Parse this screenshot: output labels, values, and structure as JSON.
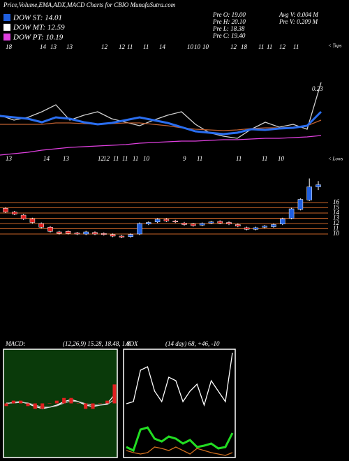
{
  "header": {
    "title": "Price,Volume,EMA,ADX,MACD Charts for CBIO MunafaSutra.com",
    "legend": [
      {
        "name": "DOW ST: 14.01",
        "color": "#1f5fe0"
      },
      {
        "name": "DOW MT: 12.59",
        "color": "#ffffff"
      },
      {
        "name": "DOW PT: 10.19",
        "color": "#e040e0"
      }
    ],
    "info": [
      "Pre  O: 19.00",
      "Pre  H: 20.10",
      "Pre  L: 18.38",
      "Pre  C: 19.40"
    ],
    "volume": [
      "Avg  V: 0.004  M",
      "Pre  V: 0.209  M"
    ]
  },
  "chart_data": [
    {
      "type": "line",
      "top_labels": [
        "18",
        "14",
        "13",
        "13",
        "12",
        "12",
        "11",
        "11",
        "14",
        "10",
        "10",
        "10",
        "12",
        "18",
        "11",
        "11",
        "12",
        "11"
      ],
      "bottom_labels": [
        "13",
        "14",
        "13",
        "12",
        "12",
        "11",
        "11",
        "11",
        "10",
        "9",
        "11",
        "11",
        "11",
        "10"
      ],
      "annotations": [
        "< Tops",
        "< Lows",
        "0.23"
      ],
      "ylim": [
        0,
        175
      ],
      "series": [
        {
          "color": "#d0d0d0",
          "values": [
            70,
            63,
            67,
            75,
            85,
            63,
            70,
            75,
            65,
            60,
            55,
            63,
            70,
            75,
            57,
            45,
            40,
            37,
            50,
            60,
            53,
            57,
            50,
            117
          ]
        },
        {
          "color": "#c06030",
          "values": [
            57,
            57,
            57,
            57,
            59,
            59,
            58,
            57,
            58,
            59,
            59,
            57,
            55,
            52,
            50,
            49,
            48,
            49,
            51,
            52,
            52,
            53,
            55,
            63
          ]
        },
        {
          "color": "#2a6ef0",
          "values": [
            69,
            67,
            65,
            60,
            67,
            65,
            60,
            57,
            59,
            63,
            67,
            63,
            59,
            53,
            47,
            45,
            43,
            45,
            50,
            49,
            51,
            52,
            55,
            75
          ]
        },
        {
          "color": "#e040e0",
          "values": [
            13,
            15,
            17,
            20,
            22,
            24,
            25,
            26,
            27,
            28,
            30,
            31,
            32,
            33,
            33,
            34,
            35,
            35,
            36,
            37,
            37,
            38,
            39,
            41
          ]
        }
      ]
    },
    {
      "type": "candlestick",
      "ylim": [
        6,
        22
      ],
      "yticks": [
        10,
        11,
        12,
        13,
        14,
        15,
        16
      ],
      "up_color": "#1f5fe0",
      "down_color": "#e02020",
      "level_color": "#c86428",
      "open": [
        14.9,
        14.2,
        13.6,
        12.9,
        12.0,
        11.3,
        10.4,
        10.5,
        10.2,
        10.0,
        10.3,
        10.1,
        9.9,
        9.6,
        9.5,
        10.0,
        11.9,
        12.3,
        12.8,
        12.5,
        12.1,
        11.9,
        11.7,
        12.1,
        12.4,
        12.2,
        11.8,
        11.2,
        10.9,
        11.3,
        11.4,
        11.9,
        13.0,
        14.7,
        16.5,
        19.0
      ],
      "close": [
        14.2,
        13.8,
        12.9,
        12.2,
        11.3,
        10.5,
        10.1,
        10.1,
        10.0,
        10.4,
        10.0,
        9.9,
        9.6,
        9.4,
        9.9,
        12.0,
        12.2,
        12.8,
        12.5,
        12.3,
        11.8,
        11.6,
        12.0,
        12.3,
        12.1,
        11.9,
        11.5,
        10.9,
        11.2,
        11.5,
        11.8,
        12.9,
        14.8,
        16.6,
        19.0,
        19.4
      ],
      "high": [
        15.1,
        14.4,
        13.8,
        13.1,
        12.2,
        11.5,
        10.6,
        10.7,
        10.4,
        10.6,
        10.5,
        10.3,
        10.1,
        9.8,
        10.1,
        12.2,
        12.4,
        13.0,
        13.0,
        12.7,
        12.3,
        12.1,
        12.2,
        12.5,
        12.6,
        12.4,
        12.0,
        11.4,
        11.4,
        11.7,
        12.0,
        13.1,
        15.0,
        16.8,
        20.6,
        20.1
      ],
      "low": [
        14.0,
        13.6,
        12.7,
        12.0,
        11.1,
        10.3,
        9.9,
        9.9,
        9.8,
        9.8,
        9.8,
        9.7,
        9.4,
        9.2,
        9.3,
        9.8,
        11.7,
        12.1,
        12.3,
        12.1,
        11.6,
        11.4,
        11.5,
        11.9,
        11.9,
        11.7,
        11.3,
        10.7,
        10.7,
        11.1,
        11.2,
        11.7,
        12.8,
        14.5,
        16.3,
        18.38
      ]
    },
    {
      "type": "line",
      "title": "MACD:",
      "subtitle": "(12,26,9) 15.28,  18.48,  1.8",
      "ylim": [
        0,
        155
      ],
      "y2lim": [
        -20,
        20
      ],
      "background": "#0a3a0a",
      "series": [
        {
          "color": "#ffffff",
          "values": [
            77,
            79,
            80,
            77,
            73,
            70,
            72,
            75,
            80,
            83,
            80,
            75,
            73,
            75,
            77,
            90
          ]
        },
        {
          "color": "#c8c8c8",
          "values": [
            78,
            78,
            79,
            78,
            75,
            72,
            72,
            74,
            78,
            81,
            80,
            77,
            75,
            75,
            76,
            83
          ]
        },
        {
          "color": "#e02020",
          "axis": "y2",
          "values": [
            -1,
            1,
            1,
            -1,
            -2,
            -2,
            0,
            1,
            2,
            2,
            0,
            -2,
            -2,
            0,
            1,
            7
          ]
        }
      ]
    },
    {
      "type": "line",
      "title": "ADX",
      "subtitle": "(14  day) 68,  +46,  -10",
      "ylim": [
        0,
        155
      ],
      "background": "#000000",
      "series": [
        {
          "color": "#ffffff",
          "values": [
            77,
            80,
            125,
            130,
            95,
            80,
            115,
            110,
            80,
            95,
            105,
            75,
            110,
            95,
            80,
            150
          ]
        },
        {
          "color": "#22dd22",
          "values": [
            15,
            10,
            40,
            43,
            27,
            23,
            30,
            27,
            20,
            25,
            15,
            17,
            20,
            13,
            15,
            35
          ]
        },
        {
          "color": "#d07020",
          "values": [
            10,
            7,
            5,
            7,
            15,
            13,
            10,
            15,
            10,
            5,
            13,
            10,
            7,
            5,
            3,
            7
          ]
        }
      ]
    }
  ]
}
